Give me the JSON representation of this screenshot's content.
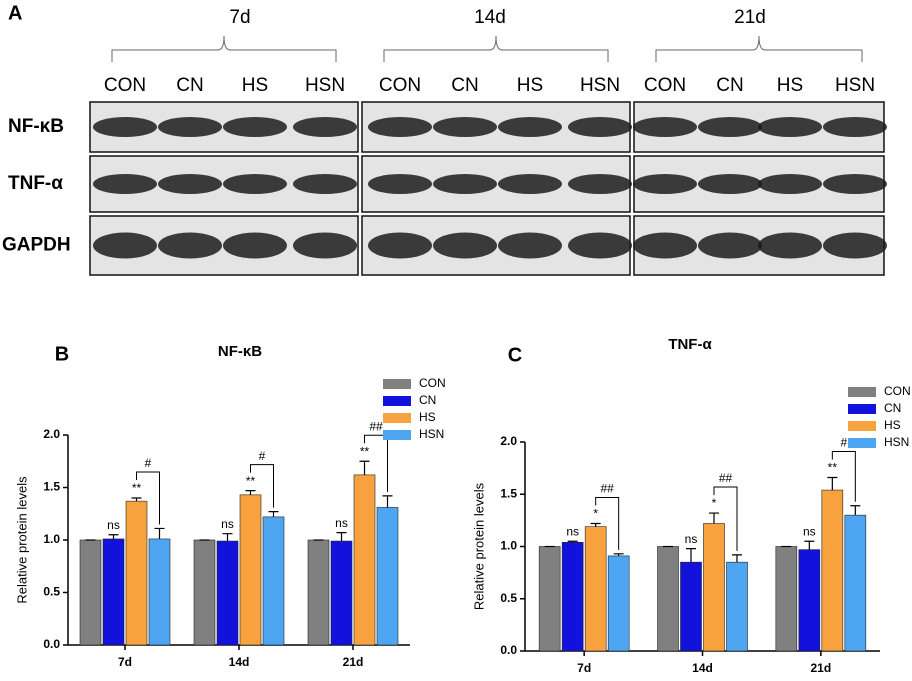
{
  "blot": {
    "panel_label": "A",
    "groups": [
      {
        "label": "7d",
        "lanes": [
          "CON",
          "CN",
          "HS",
          "HSN"
        ]
      },
      {
        "label": "14d",
        "lanes": [
          "CON",
          "CN",
          "HS",
          "HSN"
        ]
      },
      {
        "label": "21d",
        "lanes": [
          "CON",
          "CN",
          "HS",
          "HSN"
        ]
      }
    ],
    "rows": [
      "NF-κB",
      "TNF-α",
      "GAPDH"
    ]
  },
  "chart_data": [
    {
      "type": "bar",
      "panel_label": "B",
      "title": "NF-κB",
      "y_label": "Relative protein levels",
      "categories": [
        "7d",
        "14d",
        "21d"
      ],
      "series": [
        {
          "name": "CON",
          "color": "#808080",
          "values": [
            1,
            1,
            1
          ],
          "errors": [
            0,
            0,
            0
          ]
        },
        {
          "name": "CN",
          "color": "#1212dc",
          "values": [
            1.01,
            0.99,
            0.99
          ],
          "errors": [
            0.04,
            0.07,
            0.08
          ],
          "significance": [
            "ns",
            "ns",
            "ns"
          ]
        },
        {
          "name": "HS",
          "color": "#f7a23e",
          "values": [
            1.37,
            1.43,
            1.62
          ],
          "errors": [
            0.03,
            0.04,
            0.13
          ],
          "significance": [
            "**",
            "**",
            "**"
          ]
        },
        {
          "name": "HSN",
          "color": "#4ea6f2",
          "values": [
            1.01,
            1.22,
            1.31
          ],
          "errors": [
            0.1,
            0.05,
            0.11
          ]
        }
      ],
      "bracket_labels": [
        "#",
        "#",
        "##"
      ],
      "ylim": [
        0,
        2
      ],
      "yticks": [
        {
          "value": 0,
          "label": "0.0"
        },
        {
          "value": 0.5,
          "label": "0.5"
        },
        {
          "value": 1,
          "label": "1.0"
        },
        {
          "value": 1.5,
          "label": "1.5"
        },
        {
          "value": 2,
          "label": "2.0"
        }
      ]
    },
    {
      "type": "bar",
      "panel_label": "C",
      "title": "TNF-α",
      "y_label": "Relative protein levels",
      "categories": [
        "7d",
        "14d",
        "21d"
      ],
      "series": [
        {
          "name": "CON",
          "color": "#808080",
          "values": [
            1,
            1,
            1
          ],
          "errors": [
            0,
            0,
            0
          ]
        },
        {
          "name": "CN",
          "color": "#1212dc",
          "values": [
            1.04,
            0.85,
            0.97
          ],
          "errors": [
            0.01,
            0.13,
            0.08
          ],
          "significance": [
            "ns",
            "ns",
            "ns"
          ]
        },
        {
          "name": "HS",
          "color": "#f7a23e",
          "values": [
            1.19,
            1.22,
            1.54
          ],
          "errors": [
            0.03,
            0.1,
            0.12
          ],
          "significance": [
            "*",
            "*",
            "**"
          ]
        },
        {
          "name": "HSN",
          "color": "#4ea6f2",
          "values": [
            0.91,
            0.85,
            1.3
          ],
          "errors": [
            0.02,
            0.07,
            0.09
          ]
        }
      ],
      "bracket_labels": [
        "##",
        "##",
        "#"
      ],
      "ylim": [
        0,
        2
      ],
      "yticks": [
        {
          "value": 0,
          "label": "0.0"
        },
        {
          "value": 0.5,
          "label": "0.5"
        },
        {
          "value": 1,
          "label": "1.0"
        },
        {
          "value": 1.5,
          "label": "1.5"
        },
        {
          "value": 2,
          "label": "2.0"
        }
      ]
    }
  ]
}
